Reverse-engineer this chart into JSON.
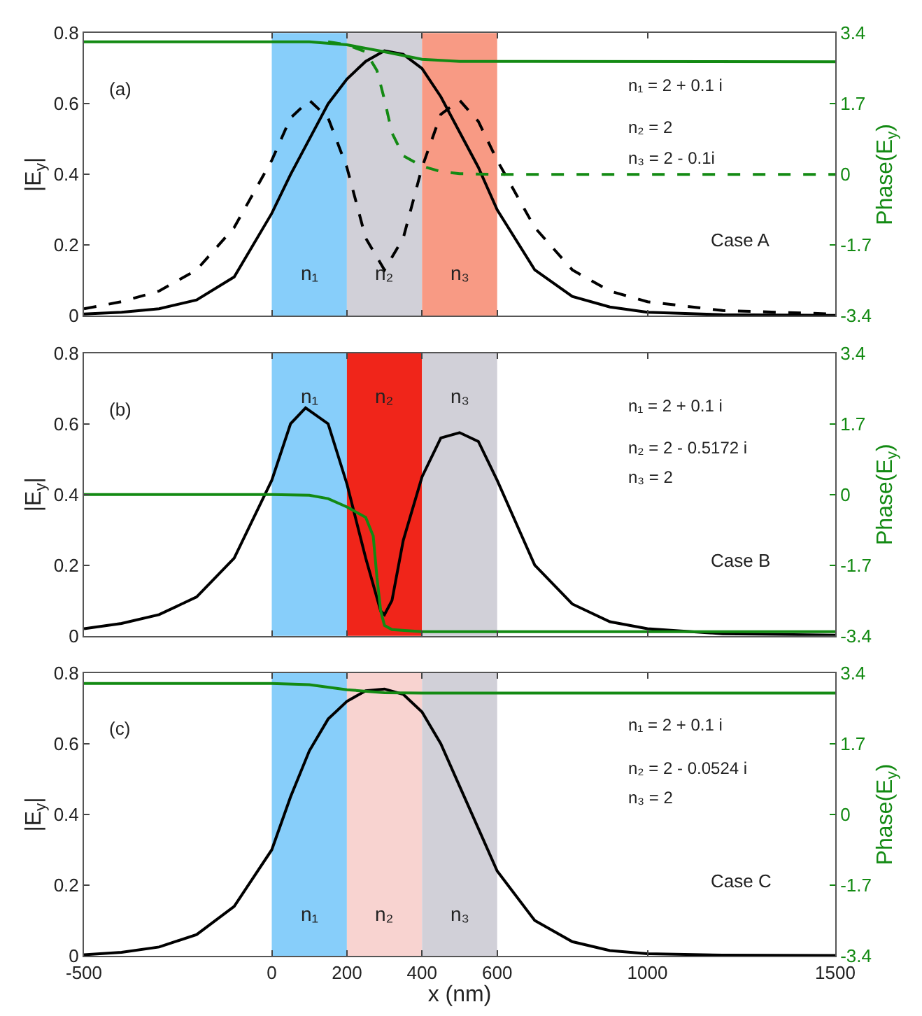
{
  "chart_data": [
    {
      "type": "line",
      "xlim": [
        -500,
        1500
      ],
      "xticks": [
        -500,
        0,
        200,
        400,
        600,
        1000,
        1500
      ],
      "ylim": [
        0,
        0.8
      ],
      "yticks": [
        0,
        0.2,
        0.4,
        0.6,
        0.8
      ],
      "y2lim": [
        -3.4,
        3.4
      ],
      "y2ticks": [
        -3.4,
        -1.7,
        0,
        1.7,
        3.4
      ],
      "ylabel": "|E$_{y}$|",
      "y2label": "Phase(E$_{y}$)",
      "grid": false,
      "legend": false,
      "tick_labels": "y",
      "bands": [
        {
          "axis": "x",
          "from": 0,
          "to": 200,
          "label": "n₁",
          "color": "#87cefa"
        },
        {
          "axis": "x",
          "from": 200,
          "to": 400,
          "label": "n₂",
          "color": "#d1d0d8"
        },
        {
          "axis": "x",
          "from": 400,
          "to": 600,
          "label": "n₃",
          "color": "#f89a84"
        }
      ],
      "annotations": [
        "(a)",
        "n₁ = 2 + 0.1 i",
        "n₂ = 2",
        "n₃ = 2 - 0.1i",
        "Case A"
      ],
      "series": [
        {
          "color": "#000000",
          "x": [
            -500,
            -400,
            -300,
            -200,
            -100,
            0,
            50,
            100,
            150,
            200,
            250,
            300,
            350,
            400,
            450,
            500,
            550,
            600,
            700,
            800,
            900,
            1000,
            1200,
            1500
          ],
          "values": [
            0.005,
            0.01,
            0.02,
            0.045,
            0.11,
            0.29,
            0.4,
            0.5,
            0.6,
            0.67,
            0.72,
            0.75,
            0.74,
            0.7,
            0.62,
            0.52,
            0.42,
            0.3,
            0.13,
            0.055,
            0.025,
            0.01,
            0.003,
            0.001
          ]
        },
        {
          "color": "#000000",
          "line_style": "dashed",
          "x": [
            -500,
            -400,
            -300,
            -200,
            -100,
            0,
            50,
            100,
            150,
            200,
            250,
            300,
            350,
            400,
            450,
            500,
            550,
            600,
            700,
            800,
            900,
            1000,
            1200,
            1500
          ],
          "values": [
            0.02,
            0.04,
            0.07,
            0.13,
            0.25,
            0.44,
            0.56,
            0.61,
            0.56,
            0.42,
            0.22,
            0.13,
            0.22,
            0.42,
            0.57,
            0.61,
            0.55,
            0.44,
            0.25,
            0.13,
            0.07,
            0.04,
            0.015,
            0.005
          ]
        },
        {
          "color": "#138a13",
          "axis": "y2",
          "x": [
            -500,
            100,
            200,
            300,
            400,
            500,
            1500
          ],
          "values": [
            3.19,
            3.19,
            3.12,
            2.95,
            2.77,
            2.72,
            2.71
          ]
        },
        {
          "color": "#138a13",
          "axis": "y2",
          "line_style": "dashed",
          "x": [
            150,
            200,
            250,
            280,
            300,
            320,
            350,
            400,
            450,
            500,
            600,
            1500
          ],
          "values": [
            3.19,
            3.12,
            2.95,
            2.5,
            1.8,
            1.0,
            0.45,
            0.2,
            0.07,
            0.02,
            0,
            0
          ]
        }
      ]
    },
    {
      "type": "line",
      "xlim": [
        -500,
        1500
      ],
      "xticks": [
        -500,
        0,
        200,
        400,
        600,
        1000,
        1500
      ],
      "ylim": [
        0,
        0.8
      ],
      "yticks": [
        0,
        0.2,
        0.4,
        0.6,
        0.8
      ],
      "y2lim": [
        -3.4,
        3.4
      ],
      "y2ticks": [
        -3.4,
        -1.7,
        0,
        1.7,
        3.4
      ],
      "ylabel": "|E$_{y}$|",
      "y2label": "Phase(E$_{y}$)",
      "grid": false,
      "legend": false,
      "tick_labels": "y",
      "bands": [
        {
          "axis": "x",
          "from": 0,
          "to": 200,
          "label": "n₁",
          "color": "#87cefa"
        },
        {
          "axis": "x",
          "from": 200,
          "to": 400,
          "label": "n₂",
          "color": "#f0251a"
        },
        {
          "axis": "x",
          "from": 400,
          "to": 600,
          "label": "n₃",
          "color": "#d1d0d8"
        }
      ],
      "annotations": [
        "(b)",
        "n₁ = 2 + 0.1 i",
        "n₂ = 2 - 0.5172 i",
        "n₃ = 2",
        "Case B"
      ],
      "series": [
        {
          "color": "#000000",
          "x": [
            -500,
            -400,
            -300,
            -200,
            -100,
            0,
            50,
            90,
            150,
            200,
            250,
            290,
            300,
            320,
            350,
            400,
            450,
            500,
            550,
            600,
            700,
            800,
            900,
            1000,
            1200,
            1500
          ],
          "values": [
            0.02,
            0.035,
            0.06,
            0.11,
            0.22,
            0.44,
            0.6,
            0.645,
            0.6,
            0.43,
            0.22,
            0.07,
            0.06,
            0.1,
            0.27,
            0.45,
            0.56,
            0.575,
            0.55,
            0.44,
            0.2,
            0.09,
            0.04,
            0.02,
            0.006,
            0.002
          ]
        },
        {
          "color": "#138a13",
          "axis": "y2",
          "x": [
            -500,
            0,
            100,
            150,
            200,
            250,
            270,
            280,
            290,
            300,
            320,
            400,
            1500
          ],
          "values": [
            0,
            0,
            -0.02,
            -0.1,
            -0.3,
            -0.55,
            -1.0,
            -2.0,
            -2.8,
            -3.15,
            -3.25,
            -3.3,
            -3.3
          ]
        }
      ]
    },
    {
      "type": "line",
      "xlim": [
        -500,
        1500
      ],
      "xticks": [
        -500,
        0,
        200,
        400,
        600,
        1000,
        1500
      ],
      "ylim": [
        0,
        0.8
      ],
      "yticks": [
        0,
        0.2,
        0.4,
        0.6,
        0.8
      ],
      "y2lim": [
        -3.4,
        3.4
      ],
      "y2ticks": [
        -3.4,
        -1.7,
        0,
        1.7,
        3.4
      ],
      "xlabel": "x (nm)",
      "ylabel": "|E$_{y}$|",
      "y2label": "Phase(E$_{y}$)",
      "grid": false,
      "legend": false,
      "bands": [
        {
          "axis": "x",
          "from": 0,
          "to": 200,
          "label": "n₁",
          "color": "#87cefa"
        },
        {
          "axis": "x",
          "from": 200,
          "to": 400,
          "label": "n₂",
          "color": "#f8d3d0"
        },
        {
          "axis": "x",
          "from": 400,
          "to": 600,
          "label": "n₃",
          "color": "#d1d0d8"
        }
      ],
      "annotations": [
        "(c)",
        "n₁ = 2 + 0.1 i",
        "n₂ = 2 - 0.0524 i",
        "n₃ = 2",
        "Case C"
      ],
      "series": [
        {
          "color": "#000000",
          "x": [
            -500,
            -400,
            -300,
            -200,
            -100,
            0,
            50,
            100,
            150,
            200,
            250,
            300,
            350,
            400,
            450,
            500,
            550,
            600,
            700,
            800,
            900,
            1000,
            1200,
            1500
          ],
          "values": [
            0.003,
            0.01,
            0.025,
            0.06,
            0.14,
            0.3,
            0.45,
            0.58,
            0.67,
            0.72,
            0.75,
            0.755,
            0.74,
            0.69,
            0.6,
            0.48,
            0.36,
            0.24,
            0.1,
            0.04,
            0.015,
            0.006,
            0.002,
            0.001
          ]
        },
        {
          "color": "#138a13",
          "axis": "y2",
          "x": [
            -500,
            0,
            100,
            200,
            300,
            400,
            1500
          ],
          "values": [
            3.15,
            3.15,
            3.12,
            3.0,
            2.93,
            2.92,
            2.92
          ]
        }
      ]
    }
  ]
}
